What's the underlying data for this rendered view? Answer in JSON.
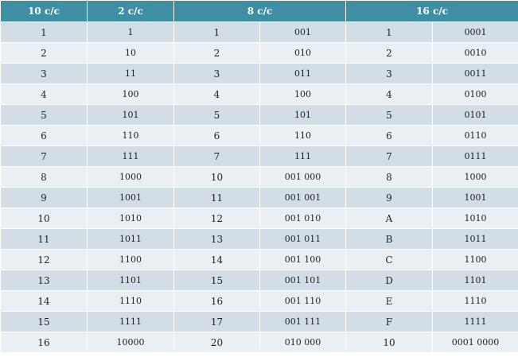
{
  "header": {
    "col_dec": "10 c/c",
    "col_bin": "2 c/c",
    "col_oct": "8 c/c",
    "col_hex": "16 c/c"
  },
  "rows": [
    {
      "dec": "1",
      "bin": "1",
      "oct": "1",
      "oct_bin": "001",
      "hex": "1",
      "hex_bin": "0001"
    },
    {
      "dec": "2",
      "bin": "10",
      "oct": "2",
      "oct_bin": "010",
      "hex": "2",
      "hex_bin": "0010"
    },
    {
      "dec": "3",
      "bin": "11",
      "oct": "3",
      "oct_bin": "011",
      "hex": "3",
      "hex_bin": "0011"
    },
    {
      "dec": "4",
      "bin": "100",
      "oct": "4",
      "oct_bin": "100",
      "hex": "4",
      "hex_bin": "0100"
    },
    {
      "dec": "5",
      "bin": "101",
      "oct": "5",
      "oct_bin": "101",
      "hex": "5",
      "hex_bin": "0101"
    },
    {
      "dec": "6",
      "bin": "110",
      "oct": "6",
      "oct_bin": "110",
      "hex": "6",
      "hex_bin": "0110"
    },
    {
      "dec": "7",
      "bin": "111",
      "oct": "7",
      "oct_bin": "111",
      "hex": "7",
      "hex_bin": "0111"
    },
    {
      "dec": "8",
      "bin": "1000",
      "oct": "10",
      "oct_bin": "001 000",
      "hex": "8",
      "hex_bin": "1000"
    },
    {
      "dec": "9",
      "bin": "1001",
      "oct": "11",
      "oct_bin": "001 001",
      "hex": "9",
      "hex_bin": "1001"
    },
    {
      "dec": "10",
      "bin": "1010",
      "oct": "12",
      "oct_bin": "001 010",
      "hex": "A",
      "hex_bin": "1010"
    },
    {
      "dec": "11",
      "bin": "1011",
      "oct": "13",
      "oct_bin": "001 011",
      "hex": "B",
      "hex_bin": "1011"
    },
    {
      "dec": "12",
      "bin": "1100",
      "oct": "14",
      "oct_bin": "001 100",
      "hex": "C",
      "hex_bin": "1100"
    },
    {
      "dec": "13",
      "bin": "1101",
      "oct": "15",
      "oct_bin": "001 101",
      "hex": "D",
      "hex_bin": "1101"
    },
    {
      "dec": "14",
      "bin": "1110",
      "oct": "16",
      "oct_bin": "001 110",
      "hex": "E",
      "hex_bin": "1110"
    },
    {
      "dec": "15",
      "bin": "1111",
      "oct": "17",
      "oct_bin": "001 111",
      "hex": "F",
      "hex_bin": "1111"
    },
    {
      "dec": "16",
      "bin": "10000",
      "oct": "20",
      "oct_bin": "010 000",
      "hex": "10",
      "hex_bin": "0001 0000"
    }
  ],
  "colors": {
    "header_bg": "#3e8fa3",
    "row_dark": "#d2dde6",
    "row_light": "#eaeff4"
  }
}
